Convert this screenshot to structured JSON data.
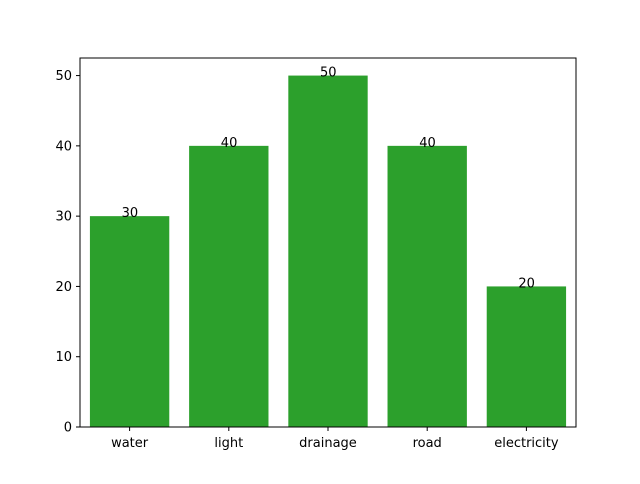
{
  "chart_data": {
    "type": "bar",
    "title": "",
    "xlabel": "",
    "ylabel": "",
    "categories": [
      "water",
      "light",
      "drainage",
      "road",
      "electricity"
    ],
    "values": [
      30,
      40,
      50,
      40,
      20
    ],
    "data_labels": [
      "30",
      "40",
      "50",
      "40",
      "20"
    ],
    "ylim": [
      0,
      52.5
    ],
    "yticks": [
      0,
      10,
      20,
      30,
      40,
      50
    ],
    "ytick_labels": [
      "0",
      "10",
      "20",
      "30",
      "40",
      "50"
    ],
    "bar_color": "#2ca02c",
    "grid": false,
    "legend": "none"
  }
}
